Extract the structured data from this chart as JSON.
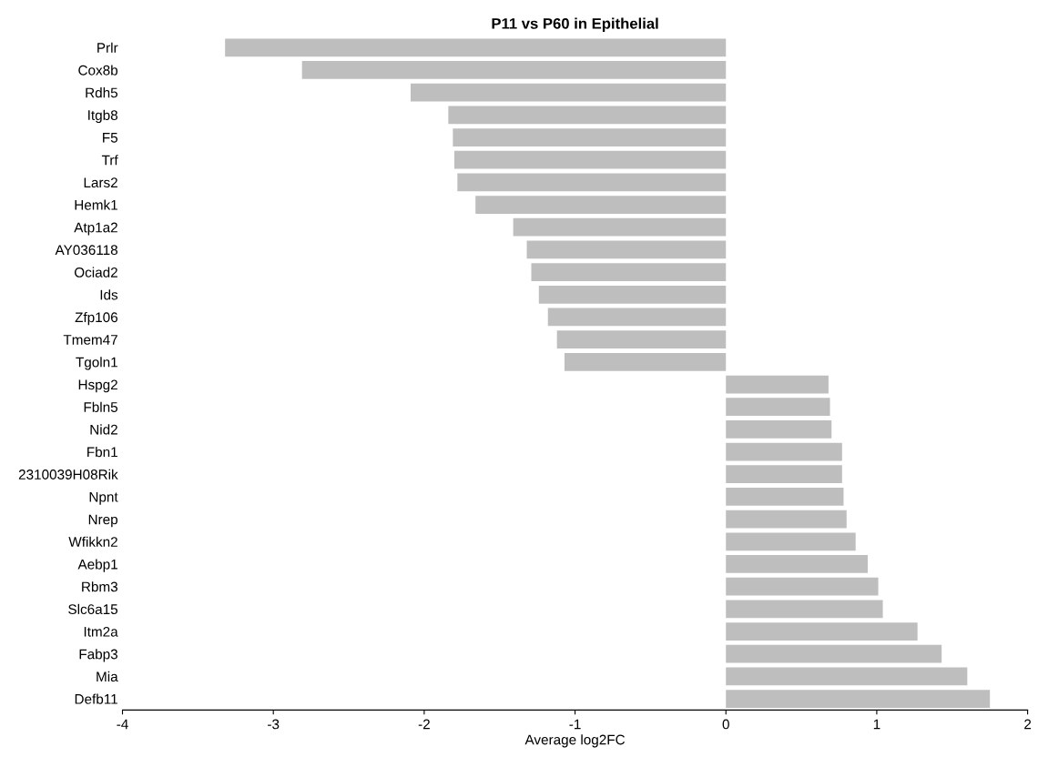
{
  "chart_data": {
    "type": "bar",
    "orientation": "horizontal",
    "title": "P11 vs P60 in Epithelial",
    "xlabel": "Average log2FC",
    "categories": [
      "Prlr",
      "Cox8b",
      "Rdh5",
      "Itgb8",
      "F5",
      "Trf",
      "Lars2",
      "Hemk1",
      "Atp1a2",
      "AY036118",
      "Ociad2",
      "Ids",
      "Zfp106",
      "Tmem47",
      "Tgoln1",
      "Hspg2",
      "Fbln5",
      "Nid2",
      "Fbn1",
      "2310039H08Rik",
      "Npnt",
      "Nrep",
      "Wfikkn2",
      "Aebp1",
      "Rbm3",
      "Slc6a15",
      "Itm2a",
      "Fabp3",
      "Mia",
      "Defb11"
    ],
    "values": [
      -3.32,
      -2.81,
      -2.09,
      -1.84,
      -1.81,
      -1.8,
      -1.78,
      -1.66,
      -1.41,
      -1.32,
      -1.29,
      -1.24,
      -1.18,
      -1.12,
      -1.07,
      0.68,
      0.69,
      0.7,
      0.77,
      0.77,
      0.78,
      0.8,
      0.86,
      0.94,
      1.01,
      1.04,
      1.27,
      1.43,
      1.6,
      1.75
    ],
    "color": "#bebebe",
    "xlim": [
      -4,
      2
    ],
    "xticks": [
      -4,
      -3,
      -2,
      -1,
      0,
      1,
      2
    ],
    "grid": false,
    "legend": false
  }
}
